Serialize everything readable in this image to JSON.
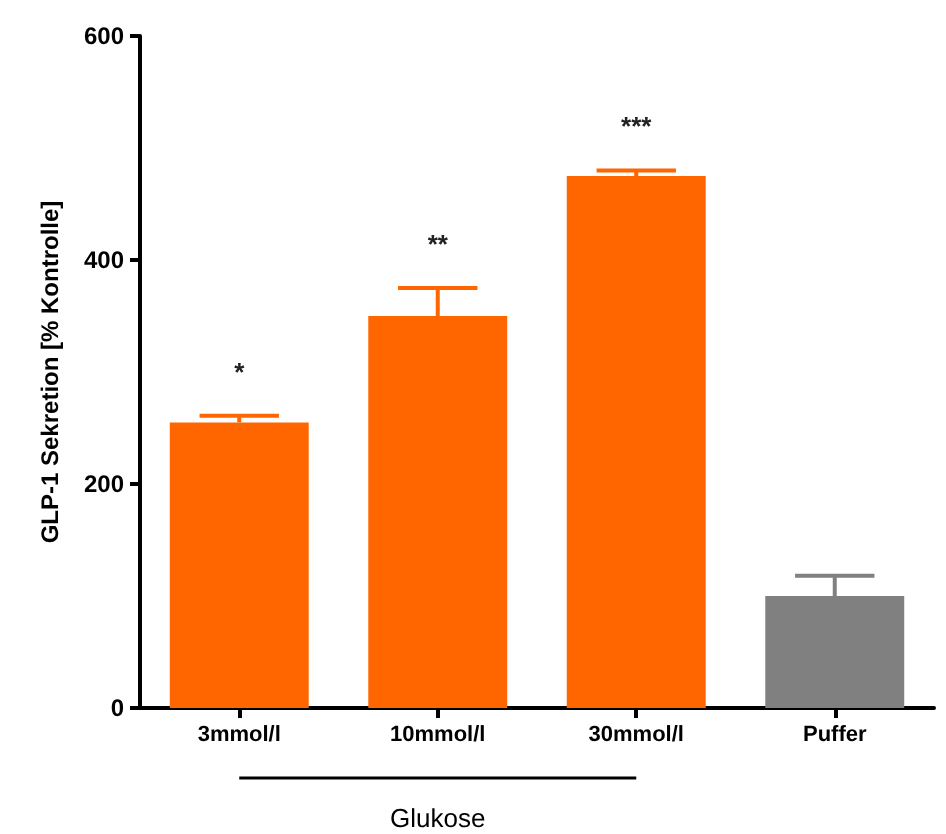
{
  "chart_data": {
    "type": "bar",
    "ylabel": "GLP-1 Sekretion [% Kontrolle]",
    "xlabel": "Glukose",
    "categories": [
      "3mmol/l",
      "10mmol/l",
      "30mmol/l",
      "Puffer"
    ],
    "values": [
      255,
      350,
      475,
      100
    ],
    "colors": [
      "#ff6600",
      "#ff6600",
      "#ff6600",
      "#808080"
    ],
    "errors": [
      6,
      25,
      5,
      18
    ],
    "ylim": [
      0,
      600
    ],
    "yticks": [
      0,
      200,
      400,
      600
    ],
    "grid": false,
    "annotations": [
      "*",
      "**",
      "***"
    ]
  }
}
